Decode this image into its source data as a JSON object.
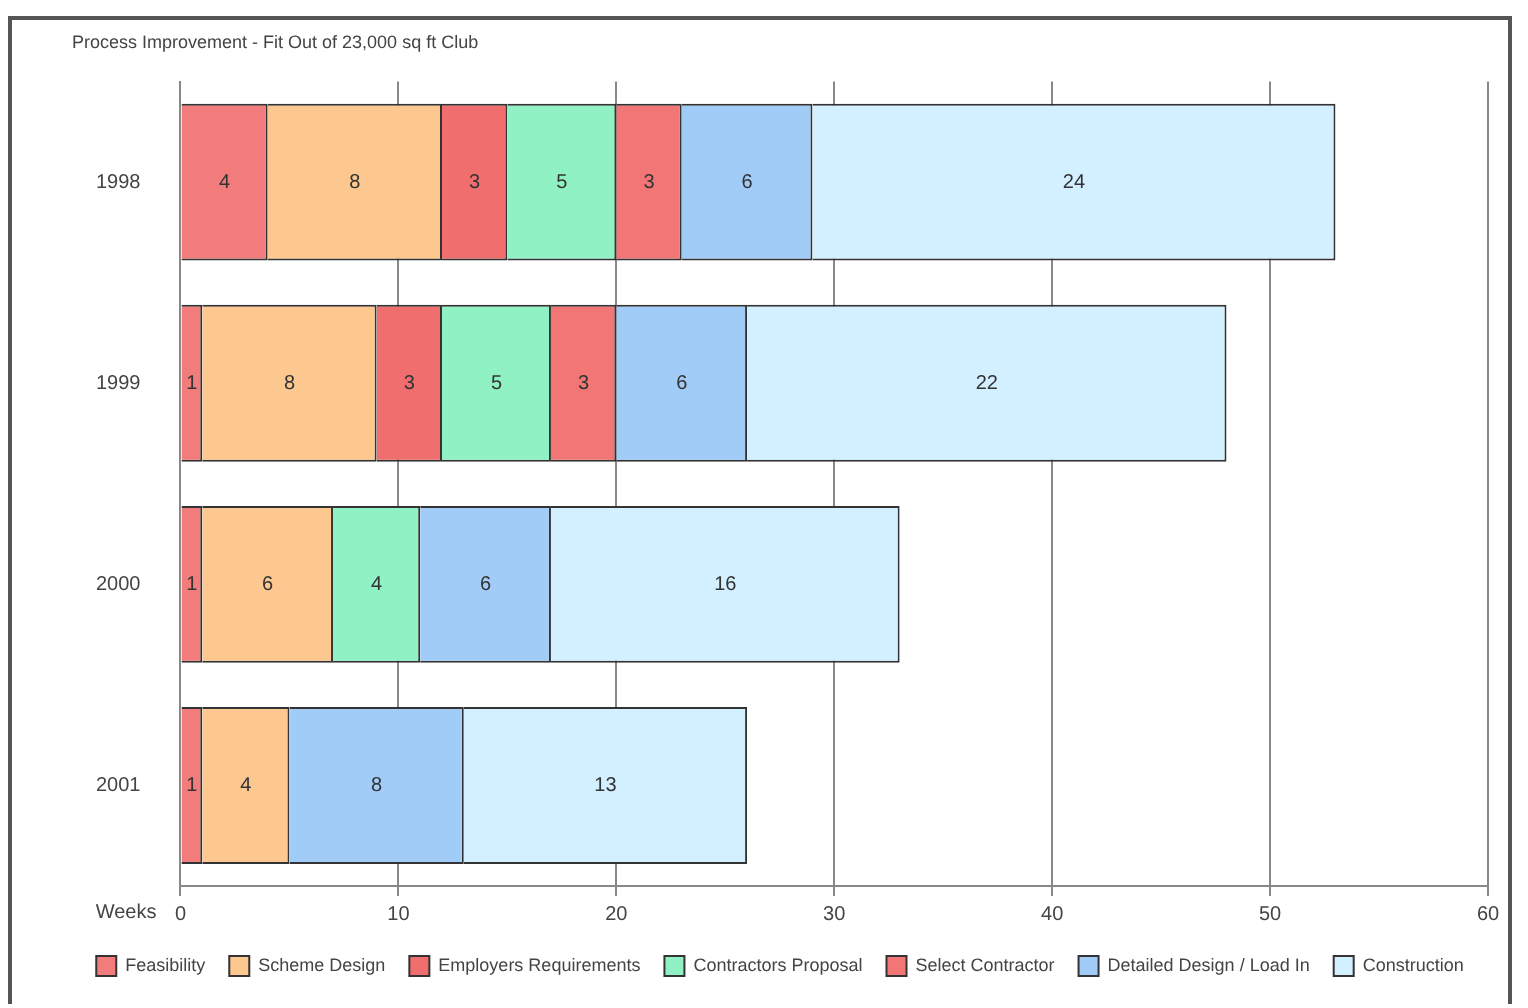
{
  "chart_data": {
    "type": "bar",
    "orientation": "horizontal",
    "stacked": true,
    "title": "Process Improvement - Fit Out of 23,000 sq ft Club",
    "xlabel": "Weeks",
    "categories": [
      "1998",
      "1999",
      "2000",
      "2001"
    ],
    "series": [
      {
        "name": "Feasibility",
        "color": "#f27c7c",
        "values": [
          4,
          1,
          1,
          1
        ]
      },
      {
        "name": "Scheme Design",
        "color": "#fcc890",
        "values": [
          8,
          8,
          6,
          4
        ]
      },
      {
        "name": "Employers Requirements",
        "color": "#f06e6e",
        "values": [
          3,
          3,
          null,
          null
        ]
      },
      {
        "name": "Contractors Proposal",
        "color": "#90f2c4",
        "values": [
          5,
          5,
          4,
          null
        ]
      },
      {
        "name": "Select Contractor",
        "color": "#f27676",
        "values": [
          3,
          3,
          null,
          null
        ]
      },
      {
        "name": "Detailed Design / Load In",
        "color": "#a2ccf8",
        "values": [
          6,
          6,
          6,
          8
        ]
      },
      {
        "name": "Construction",
        "color": "#d2f0ff",
        "values": [
          24,
          22,
          16,
          13
        ]
      }
    ],
    "xlim": [
      0,
      60
    ],
    "xticks": [
      0,
      10,
      20,
      30,
      40,
      50,
      60
    ],
    "grid": "x",
    "legend": "bottom",
    "data_labels": true
  }
}
